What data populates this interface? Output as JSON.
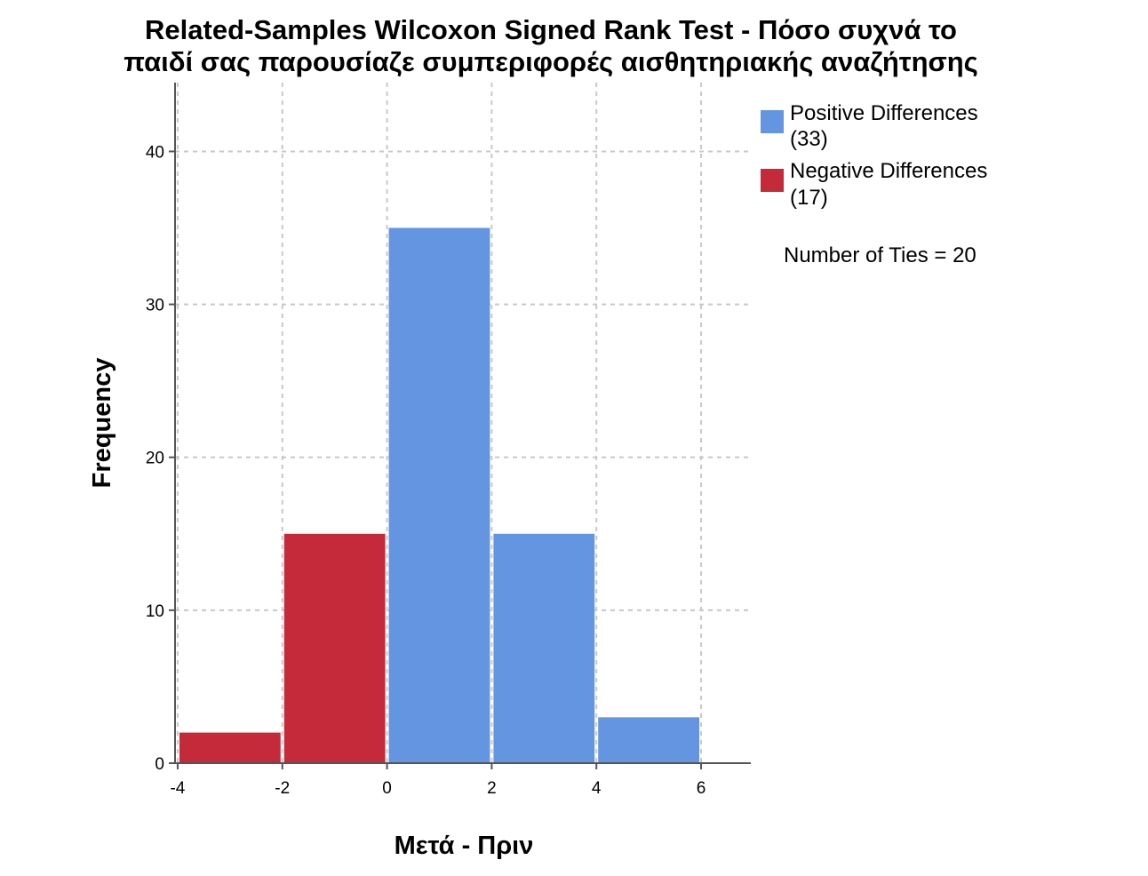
{
  "chart_data": {
    "type": "bar",
    "title_lines": [
      "Related-Samples Wilcoxon Signed Rank Test - Πόσο συχνά το",
      "παιδί σας παρουσίαζε συμπεριφορές αισθητηριακής αναζήτησης"
    ],
    "xlabel": "Μετά - Πριν",
    "ylabel": "Frequency",
    "xlim": [
      -4.05,
      6.95
    ],
    "ylim": [
      0,
      44.5
    ],
    "x_ticks": [
      -4,
      -2,
      0,
      2,
      4,
      6
    ],
    "x_tick_labels": [
      "-4",
      "-2",
      "0",
      "2",
      "4",
      "6"
    ],
    "y_ticks": [
      0,
      10,
      20,
      30,
      40
    ],
    "y_tick_labels": [
      "0",
      "10",
      "20",
      "30",
      "40"
    ],
    "grid": true,
    "legend_position": "top-right",
    "series": [
      {
        "name": "Positive Differences",
        "count_label": "(33)",
        "color": "#6495e0",
        "bins": [
          {
            "x0": 0,
            "x1": 2,
            "value": 35
          },
          {
            "x0": 2,
            "x1": 4,
            "value": 15
          },
          {
            "x0": 4,
            "x1": 6,
            "value": 3
          }
        ]
      },
      {
        "name": "Negative Differences",
        "count_label": "(17)",
        "color": "#c52a3a",
        "bins": [
          {
            "x0": -4,
            "x1": -2,
            "value": 2
          },
          {
            "x0": -2,
            "x1": 0,
            "value": 15
          }
        ]
      }
    ],
    "annotation": "Number of Ties = 20"
  }
}
